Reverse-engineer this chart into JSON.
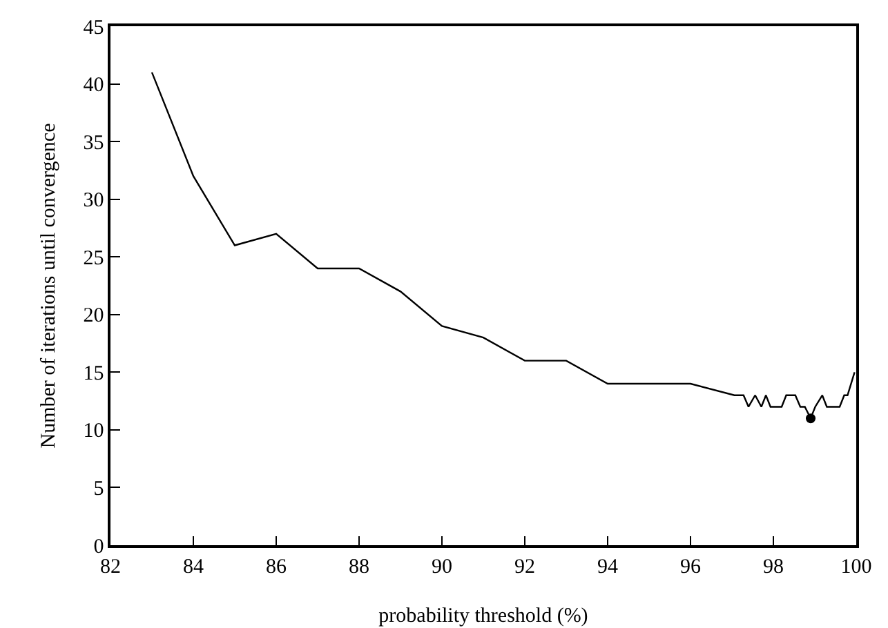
{
  "chart_data": {
    "type": "line",
    "xlabel": "probability threshold (%)",
    "ylabel": "Number of iterations until convergence",
    "xlim": [
      82,
      100
    ],
    "xticks": [
      82,
      84,
      86,
      88,
      90,
      92,
      94,
      96,
      98,
      100
    ],
    "ylim": [
      0,
      45
    ],
    "yticks": [
      0,
      5,
      10,
      15,
      20,
      25,
      30,
      35,
      40,
      45
    ],
    "grid": false,
    "marker": "none",
    "series": [
      {
        "color": "#000000",
        "x": [
          83,
          84,
          85,
          86,
          87,
          88,
          89,
          90,
          91,
          92,
          93,
          94,
          95,
          96,
          97.06,
          97.28,
          97.4,
          97.56,
          97.71,
          97.82,
          97.93,
          98.2,
          98.31,
          98.53,
          98.65,
          98.76,
          98.9,
          99.01,
          99.18,
          99.29,
          99.6,
          99.71,
          99.79,
          99.96
        ],
        "values": [
          41,
          32,
          26,
          27,
          24,
          24,
          22,
          19,
          18,
          16,
          16,
          14,
          14,
          14,
          13,
          13,
          12,
          13,
          12,
          13,
          12,
          12,
          13,
          13,
          12,
          12,
          11,
          12,
          13,
          12,
          12,
          13,
          13,
          15
        ]
      },
      {
        "type": "scatter",
        "color": "#000000",
        "marker": "circle",
        "x": [
          98.9
        ],
        "values": [
          11
        ]
      }
    ]
  }
}
